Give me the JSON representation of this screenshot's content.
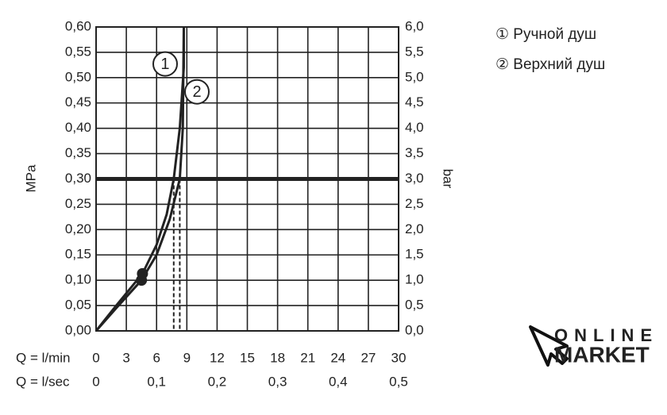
{
  "chart_data": {
    "type": "line",
    "ylabel": "MPa",
    "y2label": "bar",
    "xlabel": "Q = l/min",
    "x2label": "Q = l/sec",
    "xlim": [
      0,
      30
    ],
    "xticks": [
      0,
      3,
      6,
      9,
      12,
      15,
      18,
      21,
      24,
      27,
      30
    ],
    "x2lim": [
      0,
      0.5
    ],
    "x2ticks": [
      0,
      {
        "value": 0.1,
        "label": "0,1"
      },
      {
        "value": 0.2,
        "label": "0,2"
      },
      {
        "value": 0.3,
        "label": "0,3"
      },
      {
        "value": 0.4,
        "label": "0,4"
      },
      {
        "value": 0.5,
        "label": "0,5"
      }
    ],
    "ylim": [
      0,
      0.6
    ],
    "yticks": [
      {
        "value": 0,
        "label": "0,00"
      },
      {
        "value": 0.05,
        "label": "0,05"
      },
      {
        "value": 0.1,
        "label": "0,10"
      },
      {
        "value": 0.15,
        "label": "0,15"
      },
      {
        "value": 0.2,
        "label": "0,20"
      },
      {
        "value": 0.25,
        "label": "0,25"
      },
      {
        "value": 0.3,
        "label": "0,30"
      },
      {
        "value": 0.35,
        "label": "0,35"
      },
      {
        "value": 0.4,
        "label": "0,40"
      },
      {
        "value": 0.45,
        "label": "0,45"
      },
      {
        "value": 0.5,
        "label": "0,50"
      },
      {
        "value": 0.55,
        "label": "0,55"
      },
      {
        "value": 0.6,
        "label": "0,60"
      }
    ],
    "y2lim": [
      0,
      6
    ],
    "y2ticks": [
      {
        "value": 0,
        "label": "0,0"
      },
      {
        "value": 0.5,
        "label": "0,5"
      },
      {
        "value": 1,
        "label": "1,0"
      },
      {
        "value": 1.5,
        "label": "1,5"
      },
      {
        "value": 2,
        "label": "2,0"
      },
      {
        "value": 2.5,
        "label": "2,5"
      },
      {
        "value": 3,
        "label": "3,0"
      },
      {
        "value": 3.5,
        "label": "3,5"
      },
      {
        "value": 4,
        "label": "4,0"
      },
      {
        "value": 4.5,
        "label": "4,5"
      },
      {
        "value": 5,
        "label": "5,0"
      },
      {
        "value": 5.5,
        "label": "5,5"
      },
      {
        "value": 6,
        "label": "6,0"
      }
    ],
    "grid": true,
    "series": [
      {
        "name": "① Ручной душ",
        "color": "#222222",
        "x": [
          0,
          2,
          4.6,
          6,
          7,
          7.7,
          8.3,
          8.7,
          8.7
        ],
        "values": [
          0,
          0.05,
          0.113,
          0.17,
          0.23,
          0.3,
          0.4,
          0.52,
          0.6
        ]
      },
      {
        "name": "② Верхний душ",
        "color": "#222222",
        "x": [
          0,
          2,
          4.5,
          6,
          7.3,
          8.3,
          8.6,
          8.7
        ],
        "values": [
          0,
          0.045,
          0.1,
          0.15,
          0.22,
          0.3,
          0.4,
          0.6
        ]
      }
    ],
    "points": {
      "x": [
        4.6,
        4.5
      ],
      "values": [
        0.113,
        0.1
      ]
    },
    "reference_y": 0.3,
    "dashed_x": [
      7.7,
      8.3
    ],
    "annotations": [
      {
        "text": "1",
        "x": 6.85,
        "y": 0.527
      },
      {
        "text": "2",
        "x": 10,
        "y": 0.472
      }
    ]
  },
  "logo": {
    "line1": "ONLINE",
    "line2": "MARKET"
  }
}
